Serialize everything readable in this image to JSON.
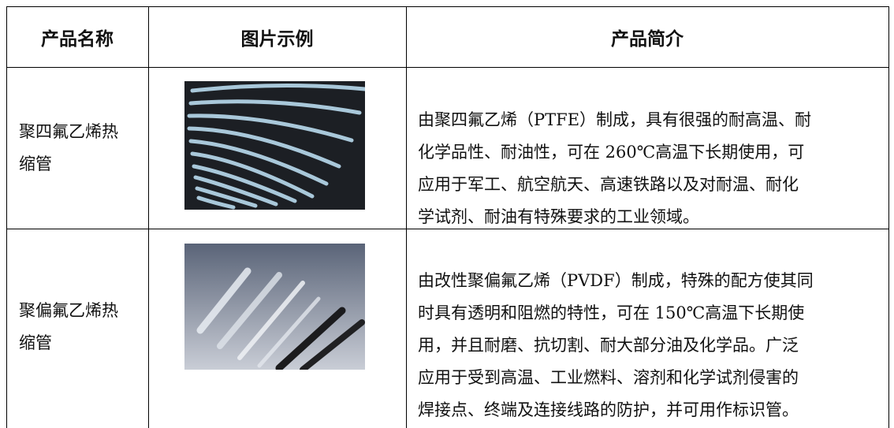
{
  "table": {
    "header": [
      "产品名称",
      "图片示例",
      "产品简介"
    ],
    "rows": [
      {
        "name": "聚四氟乙烯热缩管",
        "description": [
          "由聚四氟乙烯（PTFE）制成，具有很强的耐高温、耐",
          "化学品性、耐油性，可在 260℃高温下长期使用，可",
          "应用于军工、航空航天、高速铁路以及对耐温、耐化",
          "学试剂、耐油有特殊要求的工业领域。"
        ]
      },
      {
        "name": "聚偏氟乙烯热缩管",
        "description": [
          "由改性聚偏氟乙烯（PVDF）制成，特殊的配方使其同",
          "时具有透明和阻燃的特性，可在 150℃高温下长期使",
          "用，并且耐磨、抗切割、耐大部分油及化学品。广泛",
          "应用于受到高温、工业燃料、溶剂和化学试剂侵害的",
          "焊接点、终端及连接线路的防护，并可用作标识管。"
        ]
      }
    ]
  }
}
